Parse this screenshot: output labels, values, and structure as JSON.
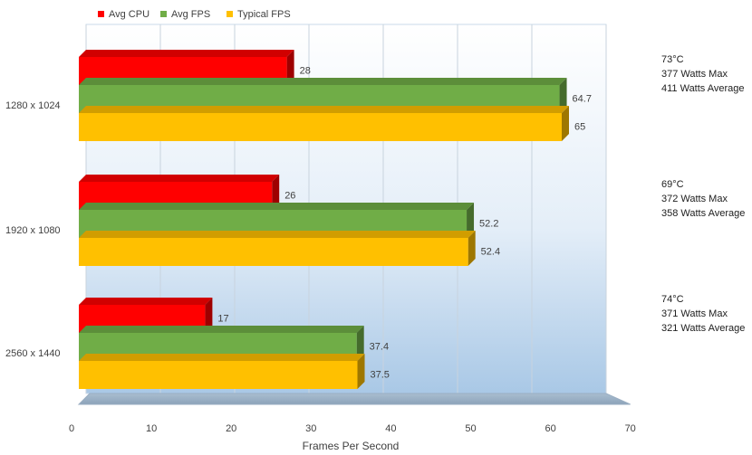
{
  "chart_data": {
    "type": "bar",
    "orientation": "horizontal",
    "categories": [
      "1280 x 1024",
      "1920 x 1080",
      "2560 x 1440"
    ],
    "series": [
      {
        "name": "Avg CPU",
        "color": "#ff0000",
        "values": [
          28,
          26,
          17
        ]
      },
      {
        "name": "Avg FPS",
        "color": "#70ad47",
        "values": [
          64.7,
          52.2,
          37.4
        ]
      },
      {
        "name": "Typical FPS",
        "color": "#ffc000",
        "values": [
          65,
          52.4,
          37.5
        ]
      }
    ],
    "value_labels": [
      [
        "28",
        "64.7",
        "65"
      ],
      [
        "26",
        "52.2",
        "52.4"
      ],
      [
        "17",
        "37.4",
        "37.5"
      ]
    ],
    "xlabel": "Frames Per Second",
    "ylabel": "",
    "xlim": [
      0,
      70
    ],
    "xticks": [
      "0",
      "10",
      "20",
      "30",
      "40",
      "50",
      "60",
      "70"
    ],
    "grid": true,
    "legend_position": "top-left",
    "style": "3d",
    "annotations": [
      [
        "73°C",
        "377 Watts Max",
        "411 Watts Average"
      ],
      [
        "69°C",
        "372 Watts Max",
        "358 Watts Average"
      ],
      [
        "74°C",
        "371 Watts Max",
        "321 Watts Average"
      ]
    ]
  }
}
